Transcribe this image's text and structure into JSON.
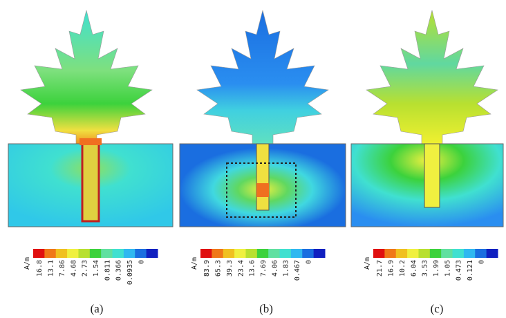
{
  "panels": [
    {
      "caption": "(a)",
      "unit": "A/m",
      "scale": [
        "16.8",
        "13.1",
        "7.86",
        "4.68",
        "2.73",
        "1.54",
        "0.811",
        "0.366",
        "0.0935",
        "0"
      ]
    },
    {
      "caption": "(b)",
      "unit": "A/m",
      "scale": [
        "83.9",
        "65.3",
        "39.3",
        "23.4",
        "13.6",
        "7.69",
        "4.06",
        "1.83",
        "0.467",
        "0"
      ]
    },
    {
      "caption": "(c)",
      "unit": "A/m",
      "scale": [
        "21.7",
        "16.9",
        "10.2",
        "6.04",
        "3.53",
        "1.99",
        "1.05",
        "0.473",
        "0.121",
        "0"
      ]
    }
  ]
}
